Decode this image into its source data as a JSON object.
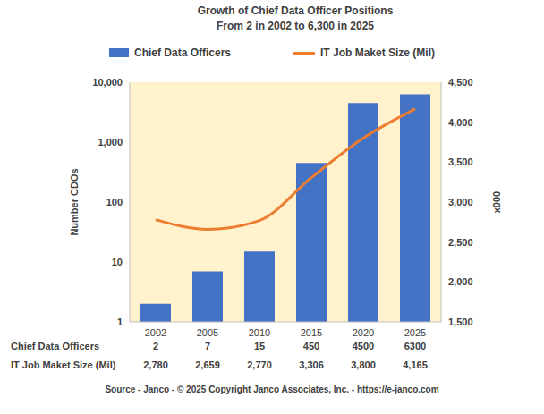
{
  "chart_data": {
    "type": "bar",
    "title": "Growth of Chief Data Officer Positions",
    "subtitle": "From 2 in 2002 to 6,300 in 2025",
    "categories": [
      "2002",
      "2005",
      "2010",
      "2015",
      "2020",
      "2025"
    ],
    "series": [
      {
        "name": "Chief Data Officers",
        "type": "bar",
        "color": "#4472c4",
        "values": [
          2,
          7,
          15,
          450,
          4500,
          6300
        ]
      },
      {
        "name": "IT Job Maket Size (Mil)",
        "type": "line",
        "axis": "y2",
        "color": "#ed7d31",
        "values": [
          2780,
          2659,
          2770,
          3306,
          3800,
          4165
        ],
        "value_labels": [
          "2,780",
          "2,659",
          "2,770",
          "3,306",
          "3,800",
          "4,165"
        ]
      }
    ],
    "log": "y",
    "ylim": [
      1,
      10000
    ],
    "yticks": [
      1,
      10,
      100,
      {
        "value": 1000,
        "label": "1,000"
      },
      {
        "value": 10000,
        "label": "10,000"
      }
    ],
    "y2lim": [
      1500,
      4500
    ],
    "y2ticks": [
      {
        "value": 1500,
        "label": "1,500"
      },
      {
        "value": 2000,
        "label": "2,000"
      },
      {
        "value": 2500,
        "label": "2,500"
      },
      {
        "value": 3000,
        "label": "3,000"
      },
      {
        "value": 3500,
        "label": "3,500"
      },
      {
        "value": 4000,
        "label": "4,000"
      },
      {
        "value": 4500,
        "label": "4,500"
      }
    ],
    "ylabel": "Number CDOs",
    "y2label": "x000",
    "legend": "top",
    "source": "Source - Janco - © 2025 Copyright Janco Associates, Inc. - https://e-janco.com"
  }
}
